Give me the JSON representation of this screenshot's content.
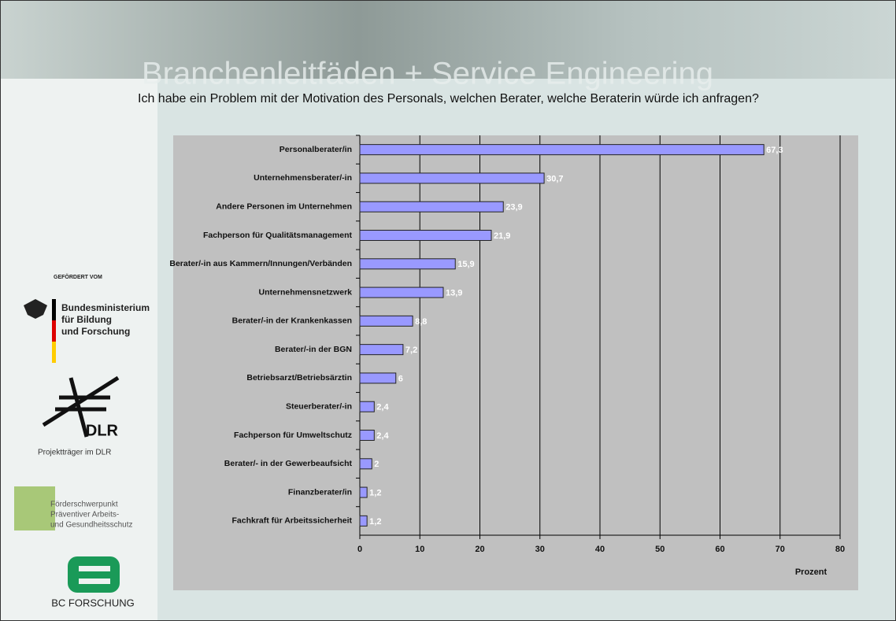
{
  "header": {
    "banner": "Branchenleitfäden + Service Engineering"
  },
  "sidebar": {
    "funded_by": "GEFÖRDERT VOM",
    "ministry": [
      "Bundesministerium",
      "für Bildung",
      "und Forschung"
    ],
    "dlr": "DLR",
    "dlr_caption": "Projektträger im DLR",
    "focus": [
      "Förderschwerpunkt",
      "Präventiver Arbeits-",
      "und Gesundheitsschutz"
    ],
    "bc": "BC FORSCHUNG"
  },
  "chart_data": {
    "type": "hbar",
    "title": "Ich habe ein Problem mit der Motivation des Personals, welchen Berater, welche Beraterin würde ich anfragen?",
    "categories": [
      "Personalberater/in",
      "Unternehmensberater/-in",
      "Andere Personen im Unternehmen",
      "Fachperson für Qualitätsmanagement",
      "Berater/-in aus Kammern/Innungen/Verbänden",
      "Unternehmensnetzwerk",
      "Berater/-in der Krankenkassen",
      "Berater/-in der BGN",
      "Betriebsarzt/Betriebsärztin",
      "Steuerberater/-in",
      "Fachperson für Umweltschutz",
      "Berater/- in der Gewerbeaufsicht",
      "Finanzberater/in",
      "Fachkraft für Arbeitssicherheit"
    ],
    "values": [
      67.3,
      30.7,
      23.9,
      21.9,
      15.9,
      13.9,
      8.8,
      7.2,
      6,
      2.4,
      2.4,
      2,
      1.2,
      1.2
    ],
    "value_labels": [
      "67,3",
      "30,7",
      "23,9",
      "21,9",
      "15,9",
      "13,9",
      "8,8",
      "7,2",
      "6",
      "2,4",
      "2,4",
      "2",
      "1,2",
      "1,2"
    ],
    "color": "#9999ff",
    "xlim": [
      0,
      80
    ],
    "xticks": [
      0,
      10,
      20,
      30,
      40,
      50,
      60,
      70,
      80
    ],
    "xlabel": "Prozent",
    "grid": true
  }
}
